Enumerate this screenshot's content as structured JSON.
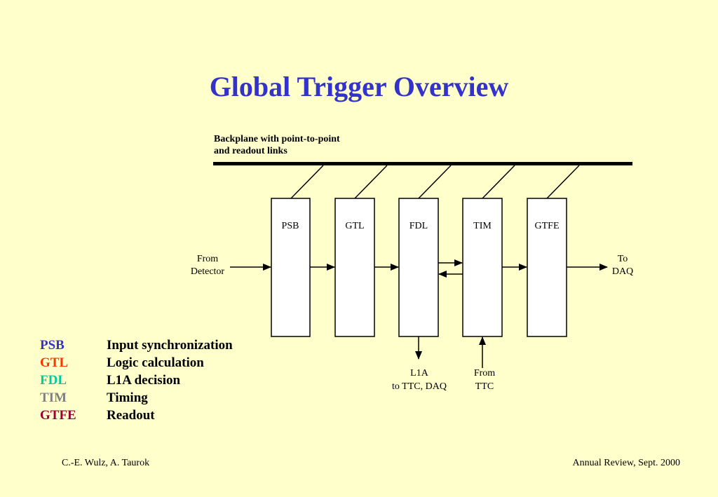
{
  "title": "Global Trigger Overview",
  "diagram": {
    "backplane_label": [
      "Backplane with point-to-point",
      "and readout links"
    ],
    "boxes": [
      "PSB",
      "GTL",
      "FDL",
      "TIM",
      "GTFE"
    ],
    "input_label": [
      "From",
      "Detector"
    ],
    "output_label": [
      "To",
      "DAQ"
    ],
    "l1a_label": [
      "L1A",
      "to TTC, DAQ"
    ],
    "from_ttc_label": [
      "From",
      "TTC"
    ]
  },
  "legend": [
    {
      "abbr": "PSB",
      "desc": "Input synchronization",
      "color": "#3333cc"
    },
    {
      "abbr": "GTL",
      "desc": "Logic calculation",
      "color": "#ff3300"
    },
    {
      "abbr": "FDL",
      "desc": "L1A decision",
      "color": "#00cc99"
    },
    {
      "abbr": "TIM",
      "desc": "Timing",
      "color": "#808080"
    },
    {
      "abbr": "GTFE",
      "desc": "Readout",
      "color": "#990033"
    }
  ],
  "footer": {
    "left": "C.-E. Wulz, A. Taurok",
    "right": "Annual Review, Sept. 2000"
  }
}
